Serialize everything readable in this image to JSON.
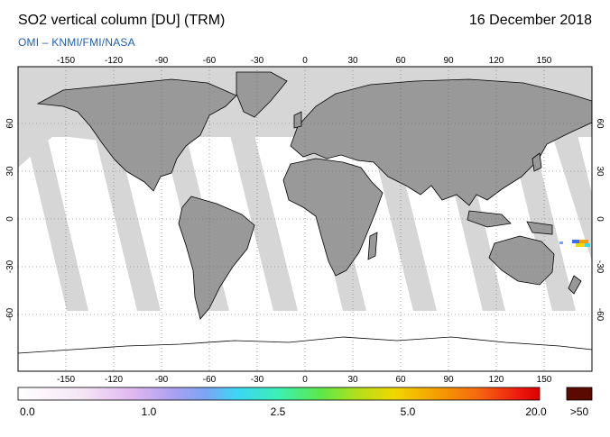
{
  "header": {
    "title": "SO2 vertical column [DU] (TRM)",
    "date": "16 December 2018",
    "credit": "OMI  –  KNMI/FMI/NASA"
  },
  "map": {
    "projection": "equirectangular",
    "lon_ticks": [
      "-150",
      "-120",
      "-90",
      "-60",
      "-30",
      "0",
      "30",
      "60",
      "90",
      "120",
      "150"
    ],
    "lat_ticks": [
      "60",
      "30",
      "0",
      "-30",
      "-60"
    ],
    "colors": {
      "no_data": "#d6d6d6",
      "land": "#999999",
      "coast": "#000000",
      "grid": "#666666"
    }
  },
  "colorbar": {
    "labels": [
      "0.0",
      "1.0",
      "2.5",
      "5.0",
      "20.0"
    ],
    "over_label": ">50",
    "over_color": "#5a0a00"
  }
}
